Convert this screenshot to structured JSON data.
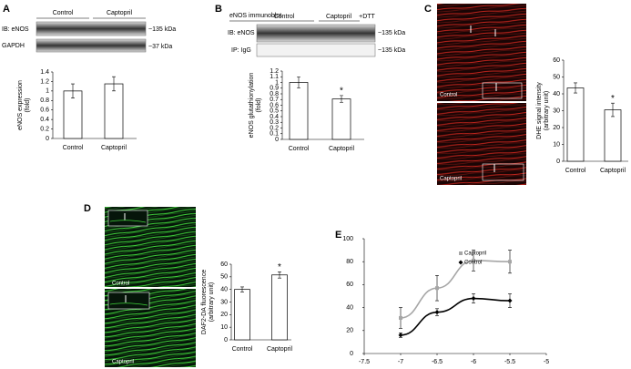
{
  "panel_letters": [
    "A",
    "B",
    "C",
    "D",
    "E"
  ],
  "blot_a": {
    "groups": [
      "Control",
      "Captopril"
    ],
    "rows": [
      "IB: eNOS",
      "GAPDH"
    ],
    "sizes": [
      "~135 kDa",
      "~37 kDa"
    ]
  },
  "blot_b": {
    "title": "eNOS immunoblot",
    "groups": [
      "Control",
      "Captopril",
      "+DTT"
    ],
    "rows": [
      "IB: eNOS",
      "IP: IgG"
    ],
    "sizes": [
      "~135 kDa",
      "~135 kDa"
    ]
  },
  "images_c": [
    "Control",
    "Captopril"
  ],
  "images_d": [
    "Control",
    "Captopril"
  ],
  "chart_data": [
    {
      "type": "bar",
      "y_label": [
        "eNOS expression",
        "(fold)"
      ],
      "categories": [
        "Control",
        "Captopril"
      ],
      "values": [
        1.0,
        1.15
      ],
      "errors": [
        0.15,
        0.15
      ],
      "color": "#ffffff",
      "ylim": [
        0,
        1.4
      ],
      "yticks": [
        0,
        0.2,
        0.4,
        0.6,
        0.8,
        1,
        1.2,
        1.4
      ]
    },
    {
      "type": "bar",
      "y_label": [
        "eNOS glutathionylation",
        "(fold)"
      ],
      "categories": [
        "Control",
        "Captopril"
      ],
      "values": [
        1.0,
        0.71
      ],
      "errors": [
        0.1,
        0.06
      ],
      "significance": [
        null,
        "*"
      ],
      "color": "#ffffff",
      "ylim": [
        0,
        1.2
      ],
      "yticks": [
        0,
        0.1,
        0.2,
        0.3,
        0.4,
        0.5,
        0.6,
        0.7,
        0.8,
        0.9,
        1,
        1.1,
        1.2
      ]
    },
    {
      "type": "bar",
      "y_label": [
        "DHE signal intensity",
        "(arbitrary unit)"
      ],
      "categories": [
        "Control",
        "Captopril"
      ],
      "values": [
        43.5,
        30.5
      ],
      "errors": [
        3,
        4
      ],
      "significance": [
        null,
        "*"
      ],
      "color": "#ffffff",
      "ylim": [
        0,
        60
      ],
      "yticks": [
        0,
        10,
        20,
        30,
        40,
        50,
        60
      ]
    },
    {
      "type": "bar",
      "y_label": [
        "DAF2-DA fluorescence",
        "(arbitrary unit)"
      ],
      "categories": [
        "Control",
        "Captopril"
      ],
      "values": [
        40,
        51.5
      ],
      "errors": [
        2,
        2.5
      ],
      "significance": [
        null,
        "*"
      ],
      "color": "#ffffff",
      "ylim": [
        0,
        60
      ],
      "yticks": [
        0,
        10,
        20,
        30,
        40,
        50,
        60
      ]
    },
    {
      "type": "line",
      "x": [
        -7,
        -6.5,
        -6,
        -5.5
      ],
      "xlim": [
        -7.5,
        -5
      ],
      "xticks": [
        -7.5,
        -7,
        -6.5,
        -6,
        -5.5,
        -5
      ],
      "ylim": [
        0,
        100
      ],
      "yticks": [
        0,
        20,
        40,
        60,
        80,
        100
      ],
      "series": [
        {
          "name": "Captopril",
          "color": "#a6a6a6",
          "values": [
            31,
            57,
            81,
            80
          ],
          "errors": [
            9,
            11,
            9,
            10
          ]
        },
        {
          "name": "Control",
          "color": "#000000",
          "values": [
            16,
            36,
            48,
            46
          ],
          "errors": [
            2,
            3,
            4,
            6
          ]
        }
      ]
    }
  ]
}
